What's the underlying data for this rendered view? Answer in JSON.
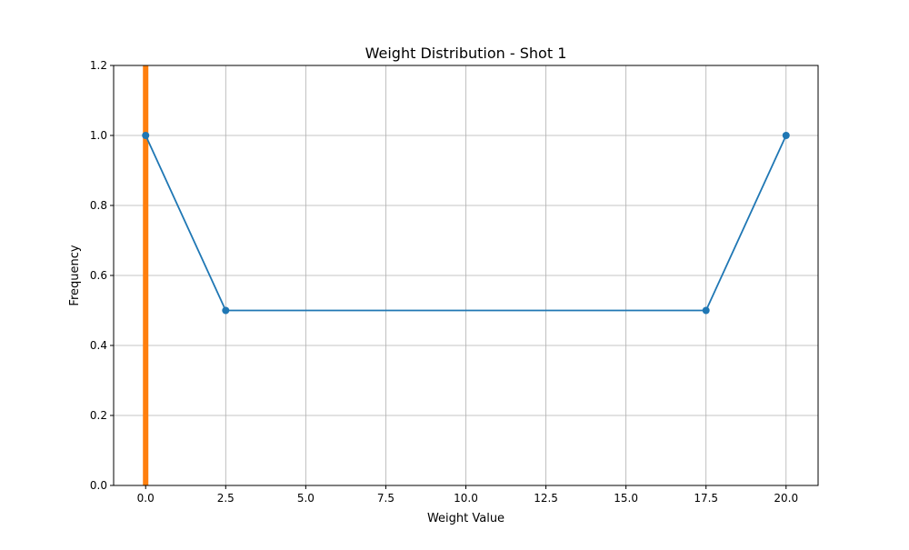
{
  "chart_data": {
    "type": "line",
    "title": "Weight Distribution - Shot 1",
    "xlabel": "Weight Value",
    "ylabel": "Frequency",
    "xlim": [
      -1,
      21
    ],
    "ylim": [
      0,
      1.2
    ],
    "x_ticks": [
      0.0,
      2.5,
      5.0,
      7.5,
      10.0,
      12.5,
      15.0,
      17.5,
      20.0
    ],
    "x_tick_labels": [
      "0.0",
      "2.5",
      "5.0",
      "7.5",
      "10.0",
      "12.5",
      "15.0",
      "17.5",
      "20.0"
    ],
    "y_ticks": [
      0.0,
      0.2,
      0.4,
      0.6,
      0.8,
      1.0,
      1.2
    ],
    "y_tick_labels": [
      "0.0",
      "0.2",
      "0.4",
      "0.6",
      "0.8",
      "1.0",
      "1.2"
    ],
    "grid": true,
    "series": [
      {
        "type": "line",
        "color": "#1f77b4",
        "marker": "circle",
        "x": [
          0.0,
          2.5,
          17.5,
          20.0
        ],
        "y": [
          1.0,
          0.5,
          0.5,
          1.0
        ]
      },
      {
        "type": "vertical_line",
        "color": "#ff7f0e",
        "x": 0.0
      }
    ]
  }
}
